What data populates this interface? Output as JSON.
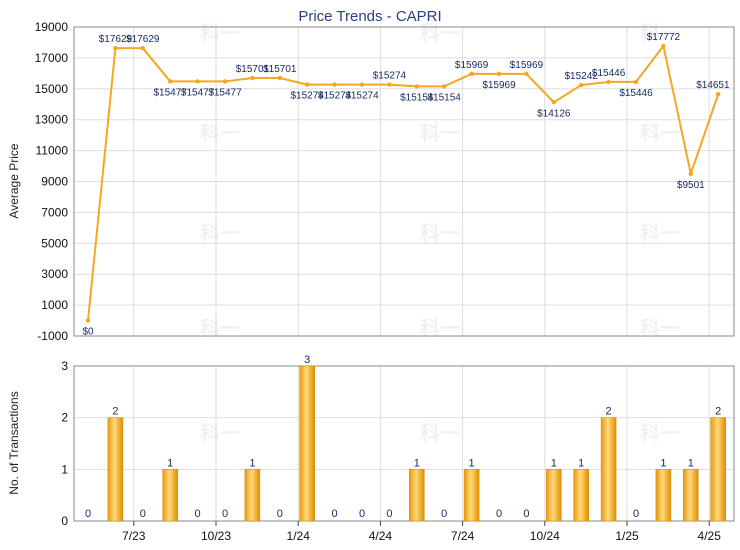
{
  "chart_data": [
    {
      "type": "line",
      "title": "Price Trends - CAPRI",
      "ylabel": "Average Price",
      "ylim": [
        -1000,
        19000
      ],
      "yticks": [
        -1000,
        1000,
        3000,
        5000,
        7000,
        9000,
        11000,
        13000,
        15000,
        17000,
        19000
      ],
      "grid": true,
      "color": "#f5a623",
      "series": [
        {
          "values": [
            0,
            17629,
            17629,
            15477,
            15477,
            15477,
            15701,
            15701,
            15274,
            15274,
            15274,
            15274,
            15154,
            15154,
            15969,
            15969,
            15969,
            14126,
            15242,
            15446,
            15446,
            17772,
            9501,
            14651
          ],
          "labels": [
            "$0",
            "$17629",
            "$17629",
            "$15477",
            "$15477",
            "$15477",
            "$15701",
            "$15701",
            "$15274",
            "$15274",
            "$15274",
            "$15274",
            "$15154",
            "$15154",
            "$15969",
            "$15969",
            "$15969",
            "$14126",
            "$15242",
            "$15446",
            "$15446",
            "$17772",
            "$9501",
            "$14651"
          ]
        }
      ]
    },
    {
      "type": "bar",
      "ylabel": "No. of Transactions",
      "ylim": [
        0,
        3
      ],
      "yticks": [
        0,
        1,
        2,
        3
      ],
      "xticks": [
        "7/23",
        "10/23",
        "1/24",
        "4/24",
        "7/24",
        "10/24",
        "1/25",
        "4/25"
      ],
      "grid": true,
      "color": "#f5a623",
      "values": [
        0,
        2,
        0,
        1,
        0,
        0,
        1,
        0,
        3,
        0,
        0,
        0,
        1,
        0,
        1,
        0,
        0,
        1,
        1,
        2,
        0,
        1,
        1,
        2
      ]
    }
  ],
  "watermark": "科一"
}
